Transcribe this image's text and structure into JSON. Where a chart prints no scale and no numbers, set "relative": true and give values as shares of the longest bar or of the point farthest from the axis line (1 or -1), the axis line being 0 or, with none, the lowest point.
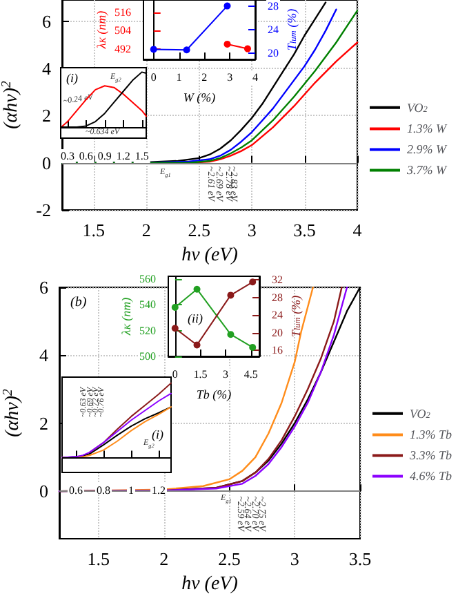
{
  "chart_data": [
    {
      "type": "line",
      "xlabel": "hν (eV)",
      "ylabel": "(αhν)$^{2}$",
      "xlim": [
        1.2,
        4.0
      ],
      "ylim": [
        -2,
        6.9
      ],
      "xticks": [
        1.5,
        2.0,
        2.5,
        3.0,
        3.5,
        4.0
      ],
      "yticks": [
        -2,
        0,
        2,
        4,
        6
      ],
      "grid": true,
      "legend": "right",
      "marker": "none",
      "line_style": "solid",
      "ref_lines": [
        {
          "axis": "y",
          "value": 0,
          "color": "#808080"
        }
      ],
      "annotations": [
        "E$_{g1}$",
        {
          "text": "~2.61 eV",
          "x": 2.61,
          "y": -0.15
        },
        {
          "text": "~2.69 eV",
          "x": 2.69,
          "y": -0.15
        },
        {
          "text": "~2.78 eV",
          "x": 2.78,
          "y": -0.15
        },
        {
          "text": "~2.83 eV",
          "x": 2.83,
          "y": -0.15
        }
      ],
      "series": [
        {
          "name": "VO$_{2}$",
          "color": "#000000",
          "x": [
            1.2,
            2.0,
            2.3,
            2.5,
            2.6,
            2.7,
            2.8,
            2.9,
            3.0,
            3.1,
            3.2,
            3.3,
            3.4,
            3.5,
            3.6,
            3.7
          ],
          "values": [
            0,
            0.02,
            0.08,
            0.2,
            0.35,
            0.6,
            0.95,
            1.4,
            1.9,
            2.5,
            3.2,
            3.9,
            4.6,
            5.4,
            6.1,
            6.8
          ]
        },
        {
          "name": "1.3% W",
          "color": "#ff0000",
          "x": [
            1.2,
            2.4,
            2.6,
            2.7,
            2.8,
            2.9,
            3.0,
            3.2,
            3.4,
            3.6,
            3.8,
            4.0
          ],
          "values": [
            0,
            0,
            0.05,
            0.15,
            0.3,
            0.5,
            0.75,
            1.5,
            2.4,
            3.4,
            4.3,
            5.1
          ]
        },
        {
          "name": "2.9% W",
          "color": "#0000ff",
          "x": [
            1.2,
            2.0,
            2.4,
            2.6,
            2.7,
            2.8,
            2.9,
            3.0,
            3.1,
            3.2,
            3.3,
            3.4,
            3.5,
            3.6,
            3.7,
            3.8
          ],
          "values": [
            0,
            0,
            0.05,
            0.15,
            0.3,
            0.55,
            0.9,
            1.3,
            1.8,
            2.3,
            2.9,
            3.5,
            4.1,
            4.8,
            5.6,
            6.5
          ]
        },
        {
          "name": "3.7% W",
          "color": "#008000",
          "x": [
            1.2,
            2.4,
            2.6,
            2.7,
            2.8,
            2.9,
            3.0,
            3.2,
            3.4,
            3.6,
            3.8,
            4.0
          ],
          "values": [
            0,
            0,
            0.08,
            0.2,
            0.4,
            0.65,
            0.95,
            1.8,
            2.8,
            3.9,
            5.1,
            6.45
          ]
        }
      ]
    },
    {
      "type": "line",
      "xlabel": "W (%)",
      "ylabel": "λ$_{K}$ (nm)",
      "y2label": "T$_{lum}$ (%)",
      "xlim": [
        -0.4,
        4
      ],
      "ylim": [
        485,
        524
      ],
      "y2lim": [
        19,
        29
      ],
      "xticks": [
        0,
        1,
        2,
        3,
        4
      ],
      "yticks": [
        492,
        504,
        516
      ],
      "y2ticks": [
        20,
        24,
        28
      ],
      "marker": "circle",
      "series": [
        {
          "color": "#ff0000",
          "x": [
            2.9,
            3.7
          ],
          "values": [
            495,
            492
          ]
        },
        {
          "color": "#0000ff",
          "axis": "y2",
          "x": [
            0,
            1.3,
            2.9
          ],
          "values": [
            20.7,
            20.6,
            28.0
          ]
        }
      ]
    },
    {
      "type": "line",
      "relative": true,
      "tick_labels": "x",
      "xlim": [
        0.19,
        1.57
      ],
      "xticks": [
        0.3,
        0.6,
        0.9,
        1.2,
        1.5
      ],
      "marker": "none",
      "annotations": [
        "(i)",
        "E$_{g2}$",
        "~0.24 eV",
        "~0.634 eV"
      ],
      "series": [
        {
          "color": "#ff0000",
          "x": [
            0.2,
            0.3,
            0.45,
            0.6,
            0.75,
            0.9,
            1.05,
            1.2,
            1.35,
            1.5,
            1.57
          ],
          "values": [
            0,
            0.1,
            0.3,
            0.5,
            0.68,
            0.75,
            0.72,
            0.6,
            0.45,
            0.3,
            0.2
          ]
        },
        {
          "color": "#000000",
          "x": [
            0.2,
            0.3,
            0.45,
            0.6,
            0.75,
            0.9,
            1.05,
            1.2,
            1.35,
            1.5,
            1.57
          ],
          "values": [
            0,
            0,
            0,
            0.02,
            0.1,
            0.25,
            0.45,
            0.65,
            0.85,
            1,
            0.98
          ]
        }
      ]
    },
    {
      "type": "line",
      "xlabel": "hν (eV)",
      "ylabel": "(αhν)$^{2}$",
      "xlim": [
        1.2,
        3.5
      ],
      "ylim": [
        -1.4,
        6
      ],
      "xticks": [
        1.5,
        2.0,
        2.5,
        3.0,
        3.5
      ],
      "yticks": [
        0,
        2,
        4,
        6
      ],
      "grid": true,
      "legend": "right",
      "marker": "none",
      "line_style": "solid",
      "ref_lines": [
        {
          "axis": "y",
          "value": 0,
          "color": "#808080"
        }
      ],
      "annotations": [
        "(b)",
        "E$_{g1}$",
        {
          "text": "~2.59 eV",
          "x": 2.59,
          "y": -0.15
        },
        {
          "text": "~2.64 eV",
          "x": 2.64,
          "y": -0.15
        },
        {
          "text": "~2.70 eV",
          "x": 2.7,
          "y": -0.15
        },
        {
          "text": "~2.75 eV",
          "x": 2.75,
          "y": -0.15
        }
      ],
      "series": [
        {
          "name": "VO$_{2}$",
          "color": "#000000",
          "x": [
            1.2,
            2.0,
            2.4,
            2.6,
            2.7,
            2.8,
            2.9,
            3.0,
            3.1,
            3.2,
            3.3,
            3.4,
            3.5
          ],
          "values": [
            0,
            0.02,
            0.1,
            0.3,
            0.55,
            0.9,
            1.4,
            2.0,
            2.7,
            3.5,
            4.4,
            5.3,
            6.0
          ]
        },
        {
          "name": "1.3% Tb",
          "color": "#ff8c1a",
          "x": [
            1.2,
            2.0,
            2.3,
            2.5,
            2.6,
            2.7,
            2.8,
            2.9,
            3.0,
            3.05,
            3.14
          ],
          "values": [
            0,
            0.05,
            0.15,
            0.35,
            0.6,
            1.0,
            1.7,
            2.6,
            3.8,
            4.7,
            6.0
          ]
        },
        {
          "name": "3.3% Tb",
          "color": "#8b1a1a",
          "x": [
            1.2,
            2.0,
            2.4,
            2.6,
            2.7,
            2.8,
            2.9,
            3.0,
            3.1,
            3.2,
            3.3,
            3.36
          ],
          "values": [
            0,
            0.02,
            0.1,
            0.3,
            0.55,
            0.95,
            1.5,
            2.2,
            3.0,
            3.9,
            5.0,
            6.0
          ]
        },
        {
          "name": "4.6% Tb",
          "color": "#8b00ff",
          "x": [
            1.2,
            2.0,
            2.4,
            2.6,
            2.7,
            2.8,
            2.9,
            3.0,
            3.1,
            3.2,
            3.3,
            3.4
          ],
          "values": [
            0,
            0.02,
            0.08,
            0.22,
            0.45,
            0.8,
            1.3,
            1.9,
            2.6,
            3.5,
            4.6,
            6.0
          ]
        }
      ]
    },
    {
      "type": "line",
      "xlabel": "Tb (%)",
      "ylabel": "λ$_{K}$ (nm)",
      "y2label": "T$_{lum}$ (%)",
      "xlim": [
        -0.4,
        5
      ],
      "ylim": [
        500,
        562
      ],
      "y2lim": [
        14.6,
        32.8
      ],
      "xticks": [
        0.0,
        1.5,
        3.0,
        4.5
      ],
      "yticks": [
        500,
        520,
        540,
        560
      ],
      "y2ticks": [
        16,
        20,
        24,
        28,
        32
      ],
      "marker": "circle",
      "annotations": [
        "(ii)"
      ],
      "series": [
        {
          "color": "#22a022",
          "x": [
            0,
            1.3,
            3.3,
            4.6
          ],
          "values": [
            538,
            552,
            517,
            507
          ]
        },
        {
          "color": "#8b1a1a",
          "axis": "y2",
          "x": [
            0,
            1.3,
            3.3,
            4.6
          ],
          "values": [
            21,
            17.2,
            28.5,
            31.5
          ]
        }
      ]
    },
    {
      "type": "line",
      "relative": true,
      "tick_labels": "x",
      "xlim": [
        0.5,
        1.29
      ],
      "xticks": [
        0.6,
        0.8,
        1.0,
        1.2
      ],
      "marker": "none",
      "annotations": [
        "(i)",
        "E$_{g2}$",
        "~0.63 eV",
        "~0.69 eV",
        "~0.72 eV",
        "~0.76 eV"
      ],
      "series": [
        {
          "color": "#000000",
          "x": [
            0.5,
            0.6,
            0.65,
            0.7,
            0.8,
            0.9,
            1.0,
            1.1,
            1.2,
            1.29
          ],
          "values": [
            0,
            0.01,
            0.02,
            0.05,
            0.17,
            0.3,
            0.42,
            0.52,
            0.6,
            0.68
          ]
        },
        {
          "color": "#ff8c1a",
          "x": [
            0.5,
            0.6,
            0.65,
            0.7,
            0.8,
            0.9,
            1.0,
            1.1,
            1.2,
            1.29
          ],
          "values": [
            0,
            0,
            0.01,
            0.03,
            0.1,
            0.22,
            0.36,
            0.48,
            0.58,
            0.68
          ]
        },
        {
          "color": "#8b1a1a",
          "x": [
            0.7,
            0.8,
            0.9,
            1.0,
            1.1,
            1.2,
            1.29
          ],
          "values": [
            0.07,
            0.2,
            0.38,
            0.55,
            0.7,
            0.85,
            1
          ]
        },
        {
          "color": "#8b00ff",
          "x": [
            0.5,
            0.6,
            0.65,
            0.7,
            0.8,
            0.9,
            1.0,
            1.1,
            1.2,
            1.29
          ],
          "values": [
            0,
            0.01,
            0.03,
            0.07,
            0.2,
            0.35,
            0.5,
            0.63,
            0.76,
            0.86
          ]
        }
      ]
    }
  ]
}
